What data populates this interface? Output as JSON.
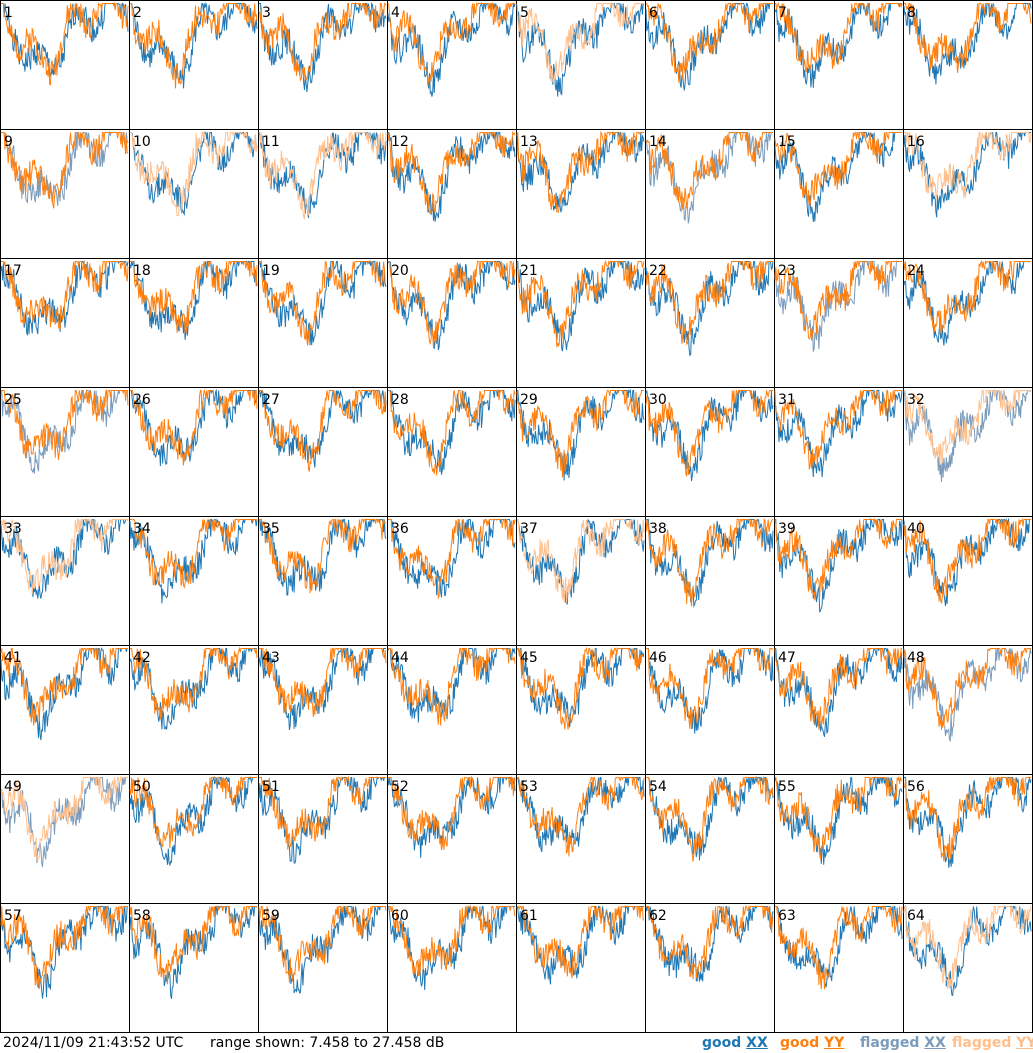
{
  "timestamp": "2024/11/09 21:43:52 UTC",
  "range_text": "range shown: 7.458 to 27.458 dB",
  "colors": {
    "good_xx": "#1f77b4",
    "good_yy": "#ff7f0e",
    "flagged_xx": "#7a9bbb",
    "flagged_yy": "#ffbf8c"
  },
  "legend": [
    {
      "key": "good_xx",
      "prefix": "good",
      "pol": "XX"
    },
    {
      "key": "good_yy",
      "prefix": "good",
      "pol": "YY"
    },
    {
      "key": "flagged_xx",
      "prefix": "flagged",
      "pol": "XX"
    },
    {
      "key": "flagged_yy",
      "prefix": "flagged",
      "pol": "YY"
    }
  ],
  "chart_data": {
    "type": "line",
    "layout": "8x8 small multiples",
    "ylim_db": [
      7.458,
      27.458
    ],
    "panels": [
      {
        "label": "1",
        "xx": "good",
        "yy": "good"
      },
      {
        "label": "2",
        "xx": "good",
        "yy": "good"
      },
      {
        "label": "3",
        "xx": "good",
        "yy": "good"
      },
      {
        "label": "4",
        "xx": "good",
        "yy": "good"
      },
      {
        "label": "5",
        "xx": "good",
        "yy": "flagged"
      },
      {
        "label": "6",
        "xx": "good",
        "yy": "good"
      },
      {
        "label": "7",
        "xx": "good",
        "yy": "good"
      },
      {
        "label": "8",
        "xx": "good",
        "yy": "good"
      },
      {
        "label": "9",
        "xx": "flagged",
        "yy": "good"
      },
      {
        "label": "10",
        "xx": "good",
        "yy": "flagged"
      },
      {
        "label": "11",
        "xx": "good",
        "yy": "flagged"
      },
      {
        "label": "12",
        "xx": "good",
        "yy": "good"
      },
      {
        "label": "13",
        "xx": "good",
        "yy": "good"
      },
      {
        "label": "14",
        "xx": "flagged",
        "yy": "good"
      },
      {
        "label": "15",
        "xx": "good",
        "yy": "good"
      },
      {
        "label": "16",
        "xx": "good",
        "yy": "flagged"
      },
      {
        "label": "17",
        "xx": "good",
        "yy": "good"
      },
      {
        "label": "18",
        "xx": "good",
        "yy": "good"
      },
      {
        "label": "19",
        "xx": "good",
        "yy": "good"
      },
      {
        "label": "20",
        "xx": "good",
        "yy": "good"
      },
      {
        "label": "21",
        "xx": "good",
        "yy": "good"
      },
      {
        "label": "22",
        "xx": "good",
        "yy": "good"
      },
      {
        "label": "23",
        "xx": "flagged",
        "yy": "good"
      },
      {
        "label": "24",
        "xx": "good",
        "yy": "good"
      },
      {
        "label": "25",
        "xx": "flagged",
        "yy": "good"
      },
      {
        "label": "26",
        "xx": "good",
        "yy": "good"
      },
      {
        "label": "27",
        "xx": "good",
        "yy": "good"
      },
      {
        "label": "28",
        "xx": "good",
        "yy": "good"
      },
      {
        "label": "29",
        "xx": "good",
        "yy": "good"
      },
      {
        "label": "30",
        "xx": "good",
        "yy": "good"
      },
      {
        "label": "31",
        "xx": "good",
        "yy": "good"
      },
      {
        "label": "32",
        "xx": "flagged",
        "yy": "flagged"
      },
      {
        "label": "33",
        "xx": "good",
        "yy": "flagged"
      },
      {
        "label": "34",
        "xx": "good",
        "yy": "good"
      },
      {
        "label": "35",
        "xx": "good",
        "yy": "good"
      },
      {
        "label": "36",
        "xx": "good",
        "yy": "good"
      },
      {
        "label": "37",
        "xx": "good",
        "yy": "flagged"
      },
      {
        "label": "38",
        "xx": "good",
        "yy": "good"
      },
      {
        "label": "39",
        "xx": "good",
        "yy": "good"
      },
      {
        "label": "40",
        "xx": "good",
        "yy": "good"
      },
      {
        "label": "41",
        "xx": "good",
        "yy": "good"
      },
      {
        "label": "42",
        "xx": "good",
        "yy": "good"
      },
      {
        "label": "43",
        "xx": "good",
        "yy": "good"
      },
      {
        "label": "44",
        "xx": "good",
        "yy": "good"
      },
      {
        "label": "45",
        "xx": "good",
        "yy": "good"
      },
      {
        "label": "46",
        "xx": "good",
        "yy": "good"
      },
      {
        "label": "47",
        "xx": "good",
        "yy": "good"
      },
      {
        "label": "48",
        "xx": "flagged",
        "yy": "good"
      },
      {
        "label": "49",
        "xx": "flagged",
        "yy": "flagged"
      },
      {
        "label": "50",
        "xx": "good",
        "yy": "good"
      },
      {
        "label": "51",
        "xx": "good",
        "yy": "good"
      },
      {
        "label": "52",
        "xx": "good",
        "yy": "good"
      },
      {
        "label": "53",
        "xx": "good",
        "yy": "good"
      },
      {
        "label": "54",
        "xx": "good",
        "yy": "good"
      },
      {
        "label": "55",
        "xx": "good",
        "yy": "good"
      },
      {
        "label": "56",
        "xx": "good",
        "yy": "good"
      },
      {
        "label": "57",
        "xx": "good",
        "yy": "good"
      },
      {
        "label": "58",
        "xx": "good",
        "yy": "good"
      },
      {
        "label": "59",
        "xx": "good",
        "yy": "good"
      },
      {
        "label": "60",
        "xx": "good",
        "yy": "good"
      },
      {
        "label": "61",
        "xx": "good",
        "yy": "good"
      },
      {
        "label": "62",
        "xx": "good",
        "yy": "good"
      },
      {
        "label": "63",
        "xx": "good",
        "yy": "good"
      },
      {
        "label": "64",
        "xx": "good",
        "yy": "flagged"
      }
    ]
  }
}
